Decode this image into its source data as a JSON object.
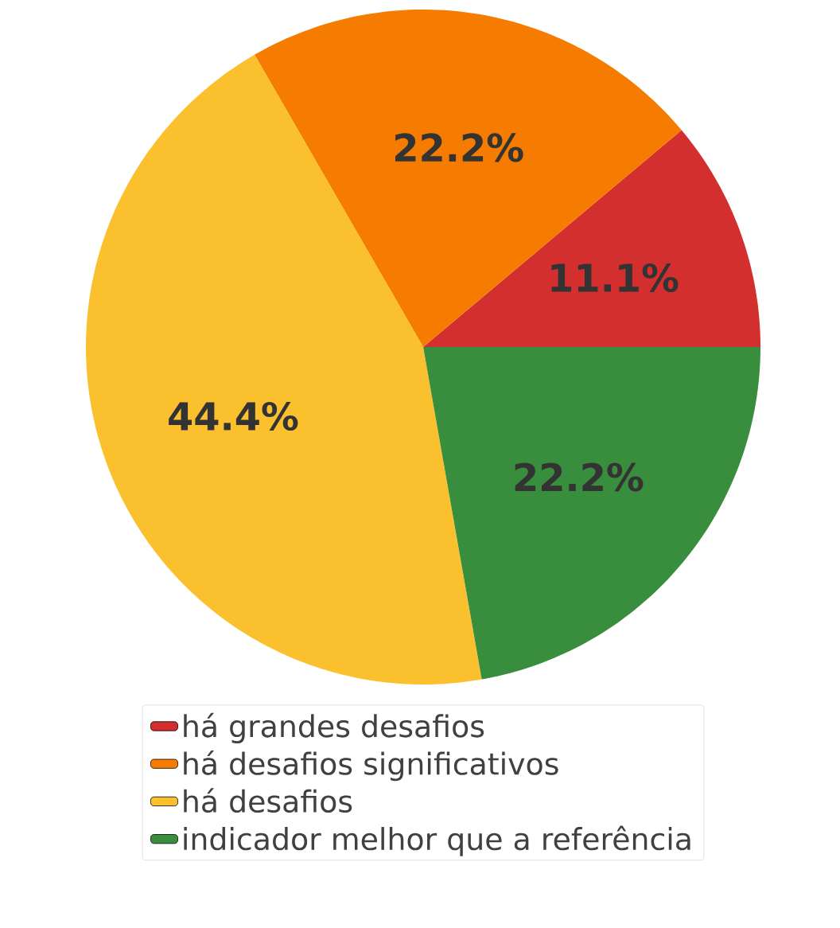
{
  "chart_data": {
    "type": "pie",
    "categories": [
      "há grandes desafios",
      "há desafios significativos",
      "há desafios",
      "indicador melhor que a referência"
    ],
    "values": [
      11.1,
      22.2,
      44.4,
      22.2
    ],
    "colors": [
      "#d32f2f",
      "#f57c00",
      "#fbc02d",
      "#388e3c"
    ],
    "value_labels": [
      "11.1%",
      "22.2%",
      "44.4%",
      "22.2%"
    ],
    "legend": "bottom"
  }
}
